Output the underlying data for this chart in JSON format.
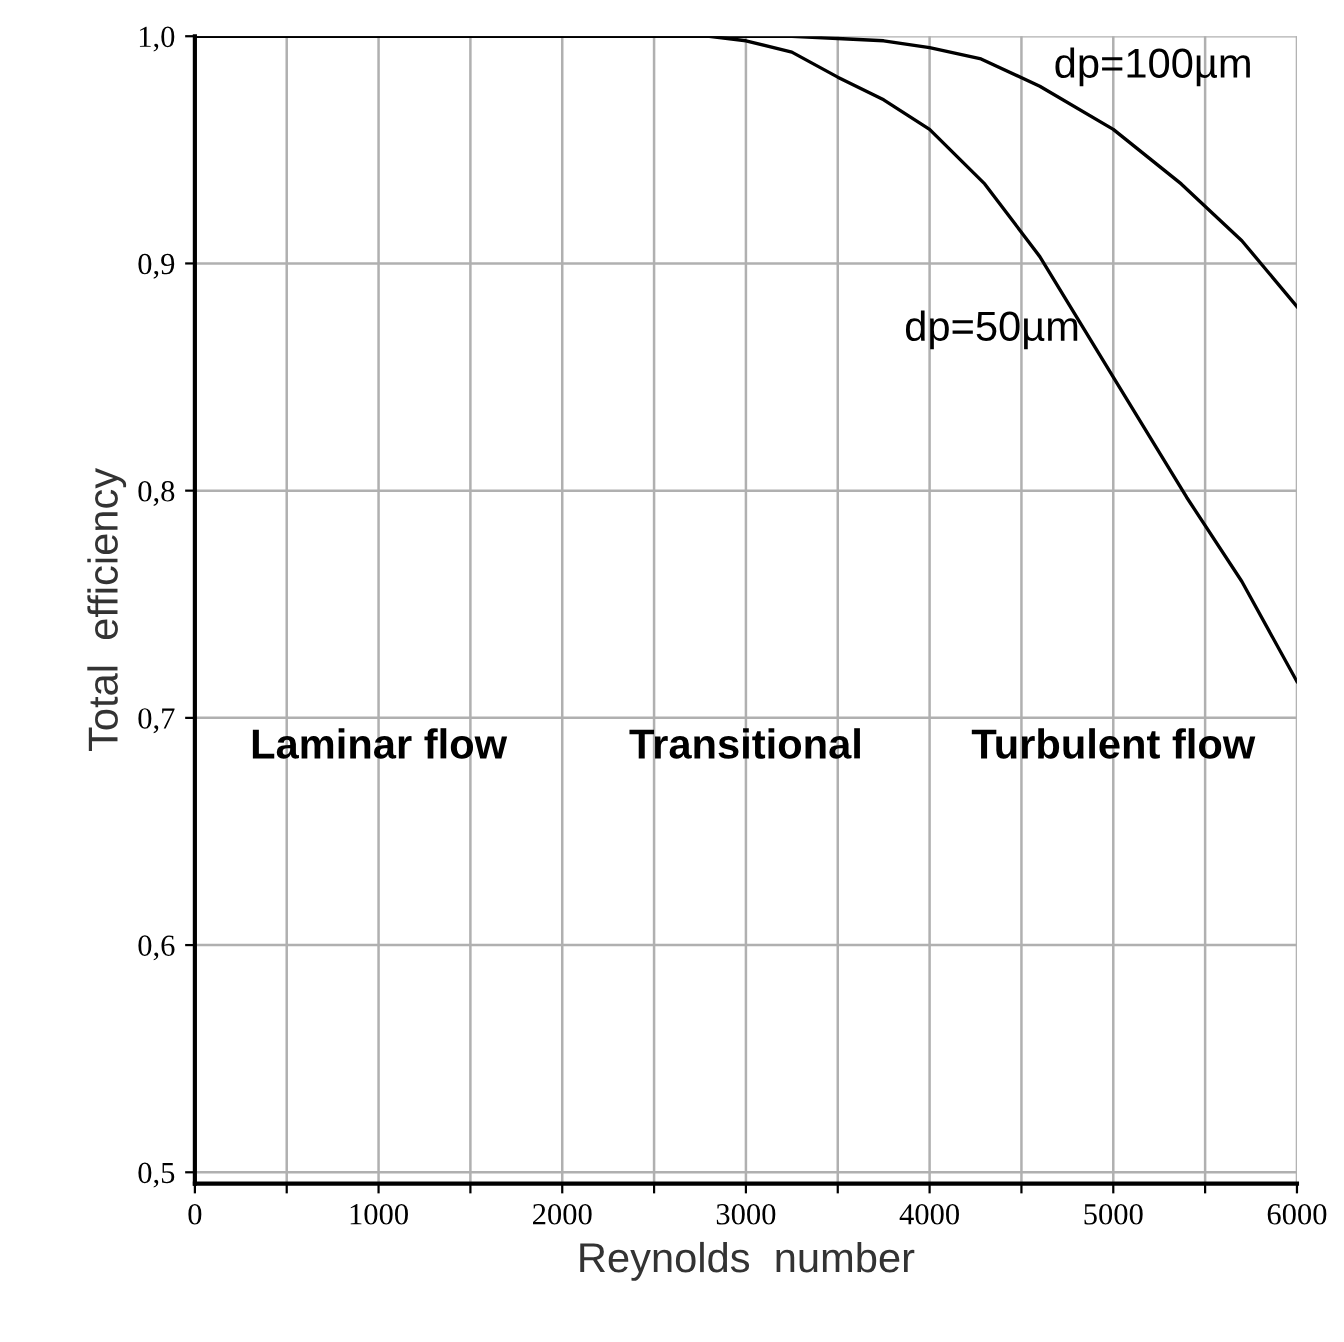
{
  "chart_data": {
    "type": "line",
    "xlabel": "Reynolds  number",
    "ylabel": "Total  efficiency",
    "xlim": [
      0,
      6000
    ],
    "ylim": [
      0.495,
      1.0
    ],
    "xticks": [
      0,
      {
        "value": 500,
        "label": null
      },
      1000,
      {
        "value": 1500,
        "label": null
      },
      2000,
      {
        "value": 2500,
        "label": null
      },
      3000,
      {
        "value": 3500,
        "label": null
      },
      4000,
      {
        "value": 4500,
        "label": null
      },
      5000,
      {
        "value": 5500,
        "label": null
      },
      6000
    ],
    "yticks": [
      {
        "value": 0.5,
        "label": "0,5"
      },
      {
        "value": 0.6,
        "label": "0,6"
      },
      {
        "value": 0.7,
        "label": "0,7"
      },
      {
        "value": 0.8,
        "label": "0,8"
      },
      {
        "value": 0.9,
        "label": "0,9"
      },
      {
        "value": 1.0,
        "label": "1,0"
      }
    ],
    "grid": true,
    "legend": false,
    "marker": "none",
    "line_style": "solid",
    "series": [
      {
        "name": "dp=100µm",
        "color": "#000000",
        "x": [
          0,
          1000,
          2000,
          3000,
          3250,
          3500,
          3750,
          4000,
          4280,
          4600,
          5000,
          5370,
          5700,
          6000
        ],
        "values": [
          1.0,
          1.0,
          1.0,
          1.0,
          1.0,
          0.999,
          0.998,
          0.995,
          0.99,
          0.978,
          0.959,
          0.935,
          0.91,
          0.881
        ]
      },
      {
        "name": "dp=50µm",
        "color": "#000000",
        "x": [
          0,
          1000,
          2000,
          2800,
          3000,
          3250,
          3500,
          3750,
          4000,
          4300,
          4600,
          5000,
          5400,
          5700,
          6000
        ],
        "values": [
          1.0,
          1.0,
          1.0,
          1.0,
          0.998,
          0.993,
          0.982,
          0.972,
          0.959,
          0.935,
          0.903,
          0.85,
          0.797,
          0.76,
          0.716
        ]
      }
    ],
    "annotations": [
      "Laminar flow",
      "Transitional",
      "Turbulent flow"
    ]
  }
}
